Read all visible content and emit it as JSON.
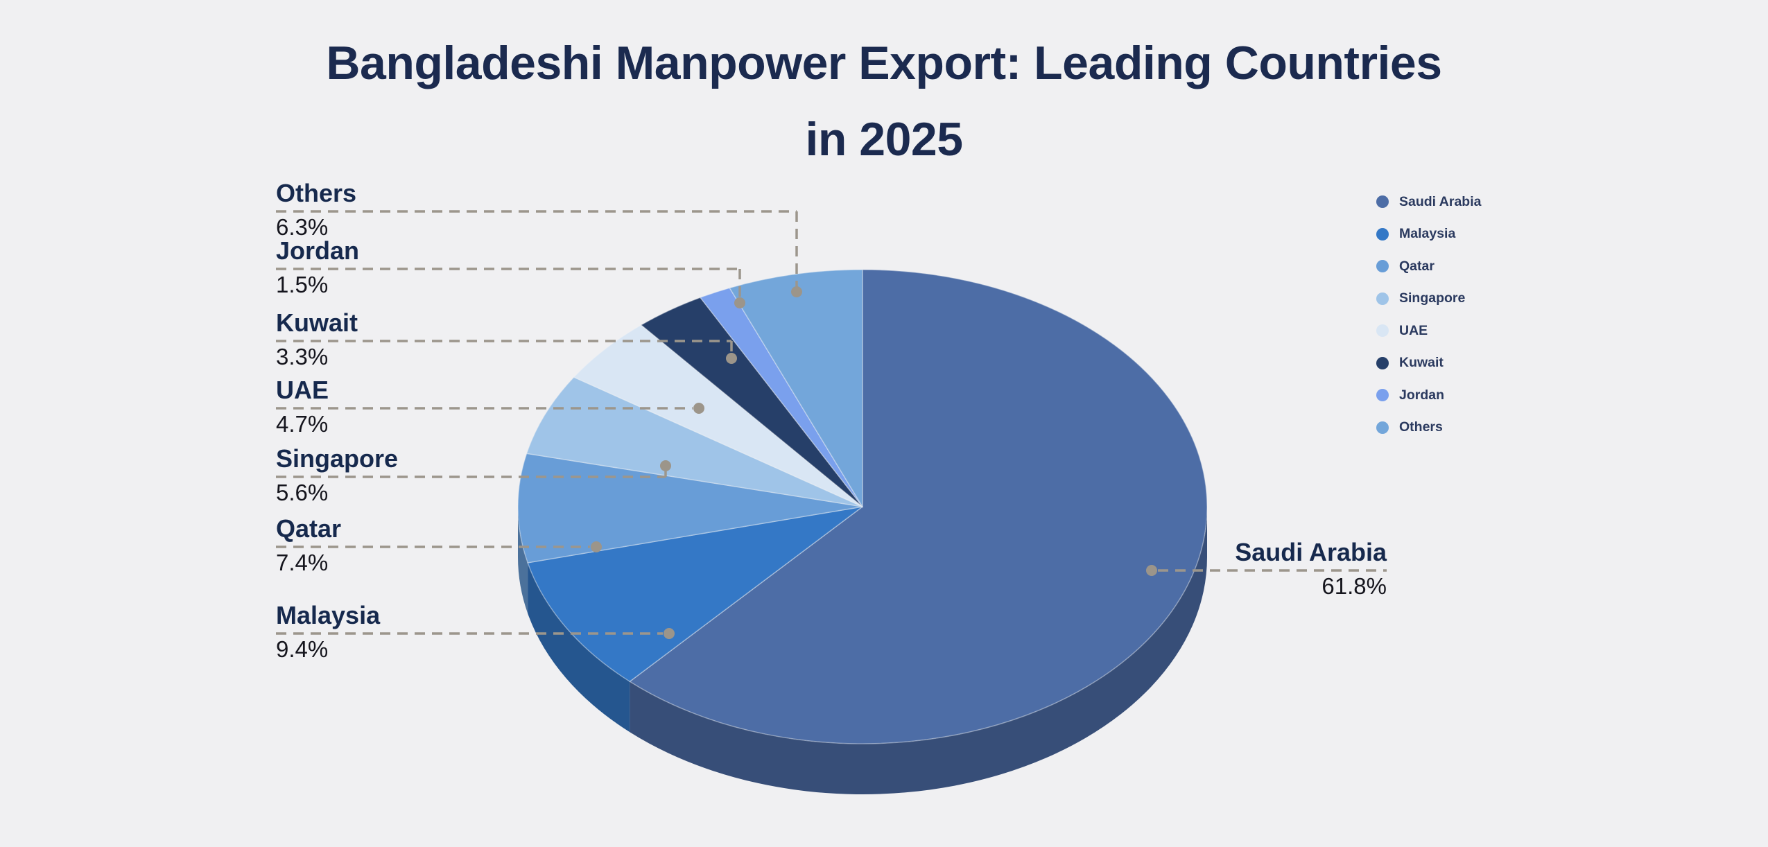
{
  "page": {
    "background": "#f0f0f2"
  },
  "title": {
    "line1": "Bangladeshi Manpower Export: Leading Countries",
    "line2": "in 2025",
    "color": "#1b2a4f"
  },
  "chart_data": {
    "type": "pie",
    "style": "pie-3d",
    "title": "Bangladeshi Manpower Export: Leading Countries in 2025",
    "labels": [
      "Saudi Arabia",
      "Malaysia",
      "Qatar",
      "Singapore",
      "UAE",
      "Kuwait",
      "Jordan",
      "Others"
    ],
    "values": [
      61.8,
      9.4,
      7.4,
      5.6,
      4.7,
      3.3,
      1.5,
      6.3
    ],
    "percent_labels": [
      "61.8%",
      "9.4%",
      "7.4%",
      "5.6%",
      "4.7%",
      "3.3%",
      "1.5%",
      "6.3%"
    ],
    "unit": "%",
    "colors": [
      "#4d6da6",
      "#3478c6",
      "#689dd7",
      "#9fc4e8",
      "#d9e6f4",
      "#263f69",
      "#7aa0ed",
      "#73a6da"
    ],
    "start_angle_deg": 0,
    "direction": "clockwise",
    "legend_position": "right",
    "accents": {
      "leader_line": "#9c968c",
      "leader_dot": "#9c958a",
      "country_label_text": "#16294d",
      "percent_text": "#15151d",
      "legend_text": "#2b3a5f"
    }
  }
}
